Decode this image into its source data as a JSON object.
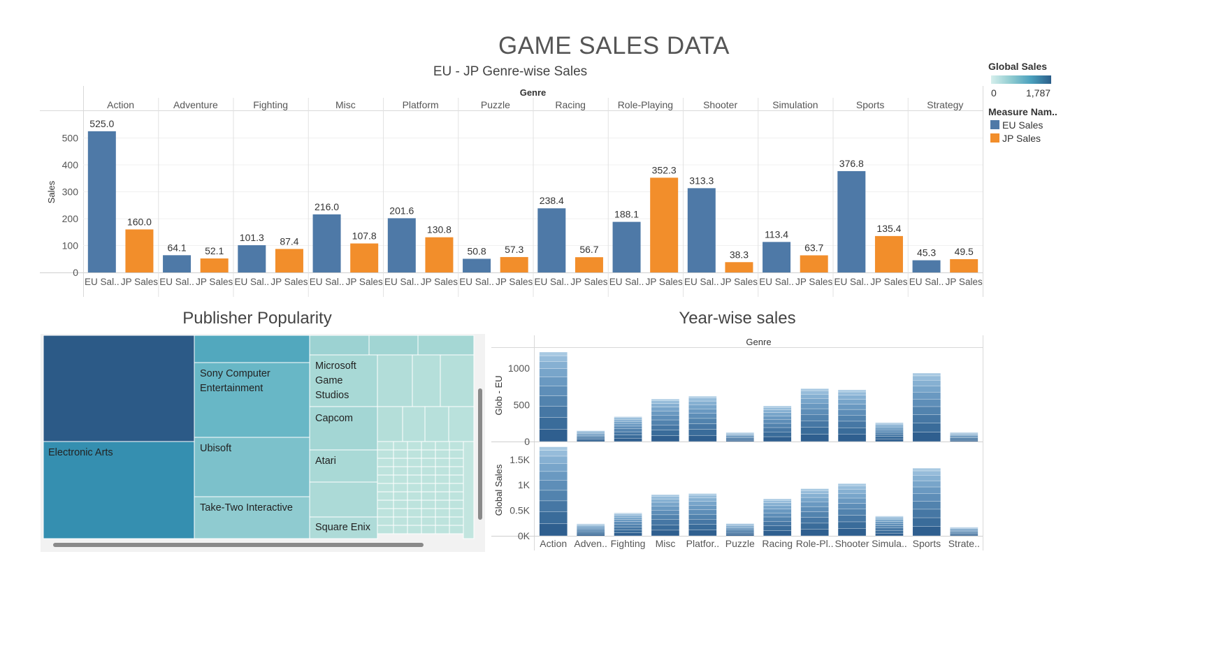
{
  "header": {
    "title": "GAME SALES DATA"
  },
  "legend": {
    "color_title": "Global Sales",
    "color_min": "0",
    "color_max": "1,787",
    "measure_title": "Measure Nam..",
    "measures": [
      {
        "label": "EU Sales",
        "color": "#4e79a7"
      },
      {
        "label": "JP Sales",
        "color": "#f28e2b"
      }
    ]
  },
  "chart_data": [
    {
      "type": "bar",
      "title": "EU - JP Genre-wise Sales",
      "header": "Genre",
      "ylabel": "Sales",
      "ylim": [
        0,
        560
      ],
      "yticks": [
        0,
        100,
        200,
        300,
        400,
        500
      ],
      "categories": [
        "Action",
        "Adventure",
        "Fighting",
        "Misc",
        "Platform",
        "Puzzle",
        "Racing",
        "Role-Playing",
        "Shooter",
        "Simulation",
        "Sports",
        "Strategy"
      ],
      "bar_labels": [
        "EU Sal..",
        "JP Sales"
      ],
      "series": [
        {
          "name": "EU Sales",
          "color": "#4e79a7",
          "values": [
            525.0,
            64.1,
            101.3,
            216.0,
            201.6,
            50.8,
            238.4,
            188.1,
            313.3,
            113.4,
            376.8,
            45.3
          ],
          "labels": [
            "525.0",
            "64.1",
            "101.3",
            "216.0",
            "201.6",
            "50.8",
            "238.4",
            "188.1",
            "313.3",
            "113.4",
            "376.8",
            "45.3"
          ]
        },
        {
          "name": "JP Sales",
          "color": "#f28e2b",
          "values": [
            160.0,
            52.1,
            87.4,
            107.8,
            130.8,
            57.3,
            56.7,
            352.3,
            38.3,
            63.7,
            135.4,
            49.5
          ],
          "labels": [
            "160.0",
            "52.1",
            "87.4",
            "107.8",
            "130.8",
            "57.3",
            "56.7",
            "352.3",
            "38.3",
            "63.7",
            "135.4",
            "49.5"
          ]
        }
      ]
    },
    {
      "type": "table",
      "title": "Publisher Popularity",
      "labeled_publishers": [
        "Electronic Arts",
        "Sony Computer Entertainment",
        "Ubisoft",
        "Take-Two Interactive",
        "Microsoft Game Studios",
        "Capcom",
        "Atari",
        "Square Enix"
      ]
    },
    {
      "type": "bar",
      "title": "Year-wise sales",
      "header": "Genre",
      "categories": [
        "Action",
        "Adven..",
        "Fighting",
        "Misc",
        "Platfor..",
        "Puzzle",
        "Racing",
        "Role-Pl..",
        "Shooter",
        "Simula..",
        "Sports",
        "Strate.."
      ],
      "panels": [
        {
          "ylabel": "Glob - EU",
          "ylim": [
            0,
            1260
          ],
          "yticks": [
            0,
            500,
            1000
          ],
          "ytick_labels": [
            "0",
            "500",
            "1000"
          ],
          "values": [
            1222,
            151,
            339,
            579,
            618,
            125,
            486,
            722,
            706,
            258,
            935,
            127
          ]
        },
        {
          "ylabel": "Global Sales",
          "ylim": [
            0,
            1800
          ],
          "yticks": [
            0,
            500,
            1000,
            1500
          ],
          "ytick_labels": [
            "0K",
            "0.5K",
            "1K",
            "1.5K"
          ],
          "values": [
            1751,
            238,
            449,
            810,
            831,
            245,
            727,
            927,
            1027,
            390,
            1331,
            174
          ]
        }
      ]
    }
  ]
}
